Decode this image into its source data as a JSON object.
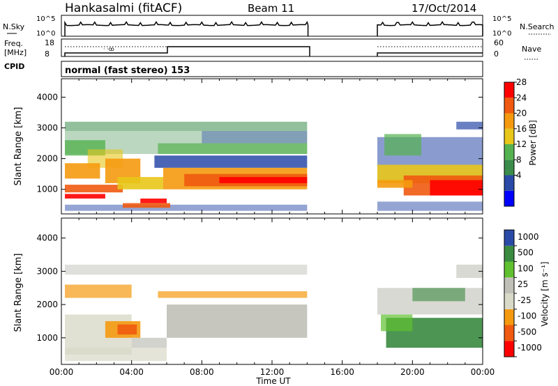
{
  "header": {
    "station": "Hankasalmi (fitACF)",
    "beam": "Beam 11",
    "date": "17/Oct/2014"
  },
  "top_panels": {
    "nsky_label": "N.Sky",
    "nsky_ticks": [
      "10^5",
      "10^0"
    ],
    "nsearch_label": "N.Search",
    "freq_label": "Freq.",
    "freq_unit": "[MHz]",
    "freq_ticks": [
      "18",
      "8"
    ],
    "nave_ticks": [
      "60",
      "0"
    ],
    "nave_label": "Nave",
    "cpid_label": "CPID",
    "cpid_text": "normal (fast stereo) 153"
  },
  "colors": {
    "power": [
      "#0000ff",
      "#2a4aa8",
      "#3b8c4a",
      "#55b250",
      "#e8c61a",
      "#f59a10",
      "#f05a10",
      "#ff0000"
    ],
    "velocity": [
      "#ff0000",
      "#f05a10",
      "#f59a10",
      "#d9d9c8",
      "#c0c0b8",
      "#60c030",
      "#3a8a40",
      "#2a4aa8"
    ]
  },
  "chart_data": [
    {
      "type": "heatmap",
      "panel": "power",
      "ylabel": "Slant Range [km]",
      "yticks": [
        "4000",
        "3000",
        "2000",
        "1000"
      ],
      "ylim": [
        200,
        4600
      ],
      "colorbar_label": "Power [dB]",
      "colorbar_ticks": [
        "28",
        "24",
        "20",
        "16",
        "12",
        "8",
        "4"
      ],
      "data_gap_hours": [
        14.0,
        18.0
      ]
    },
    {
      "type": "heatmap",
      "panel": "velocity",
      "ylabel": "Slant Range [km]",
      "yticks": [
        "4000",
        "3000",
        "2000",
        "1000"
      ],
      "ylim": [
        200,
        4600
      ],
      "colorbar_label": "Velocity [m s⁻¹]",
      "colorbar_ticks": [
        "1000",
        "500",
        "100",
        "25",
        "-25",
        "-100",
        "-500",
        "-1000"
      ],
      "data_gap_hours": [
        14.0,
        18.0
      ]
    }
  ],
  "xaxis": {
    "label": "Time UT",
    "ticks": [
      "00:00",
      "04:00",
      "08:00",
      "12:00",
      "16:00",
      "20:00",
      "00:00"
    ],
    "range_hours": [
      0,
      24
    ]
  }
}
